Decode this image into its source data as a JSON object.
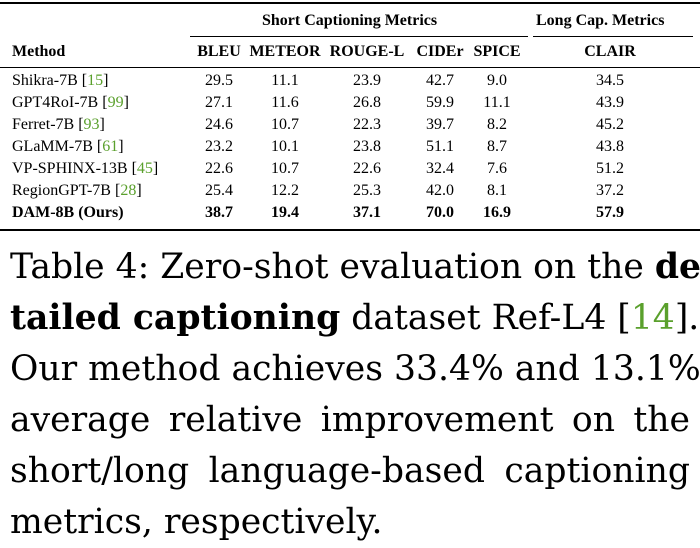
{
  "table": {
    "group_headers": {
      "short": "Short Captioning Metrics",
      "long": "Long Cap. Metrics"
    },
    "columns": [
      "Method",
      "BLEU",
      "METEOR",
      "ROUGE-L",
      "CIDEr",
      "SPICE",
      "CLAIR"
    ],
    "rows": [
      {
        "method": "Shikra-7B",
        "cite": "15",
        "values": [
          "29.5",
          "11.1",
          "23.9",
          "42.7",
          "9.0",
          "34.5"
        ]
      },
      {
        "method": "GPT4RoI-7B",
        "cite": "99",
        "values": [
          "27.1",
          "11.6",
          "26.8",
          "59.9",
          "11.1",
          "43.9"
        ]
      },
      {
        "method": "Ferret-7B",
        "cite": "93",
        "values": [
          "24.6",
          "10.7",
          "22.3",
          "39.7",
          "8.2",
          "45.2"
        ]
      },
      {
        "method": "GLaMM-7B",
        "cite": "61",
        "values": [
          "23.2",
          "10.1",
          "23.8",
          "51.1",
          "8.7",
          "43.8"
        ]
      },
      {
        "method": "VP-SPHINX-13B",
        "cite": "45",
        "values": [
          "22.6",
          "10.7",
          "22.6",
          "32.4",
          "7.6",
          "51.2"
        ]
      },
      {
        "method": "RegionGPT-7B",
        "cite": "28",
        "values": [
          "25.4",
          "12.2",
          "25.3",
          "42.0",
          "8.1",
          "37.2"
        ]
      },
      {
        "method": "DAM-8B (Ours)",
        "cite": "",
        "values": [
          "38.7",
          "19.4",
          "37.1",
          "70.0",
          "16.9",
          "57.9"
        ],
        "bold": true
      }
    ]
  },
  "caption": {
    "l1a": "Table 4: Zero-shot evaluation on the ",
    "l1b": "de-",
    "l2a": "tailed captioning",
    "l2b": " dataset Ref-L4 [",
    "l2ref": "14",
    "l2c": "].",
    "l3": "Our method achieves 33.4% and 13.1%",
    "l4": "average relative improvement on the",
    "l5": "short/long language-based captioning",
    "l6": "metrics, respectively."
  }
}
